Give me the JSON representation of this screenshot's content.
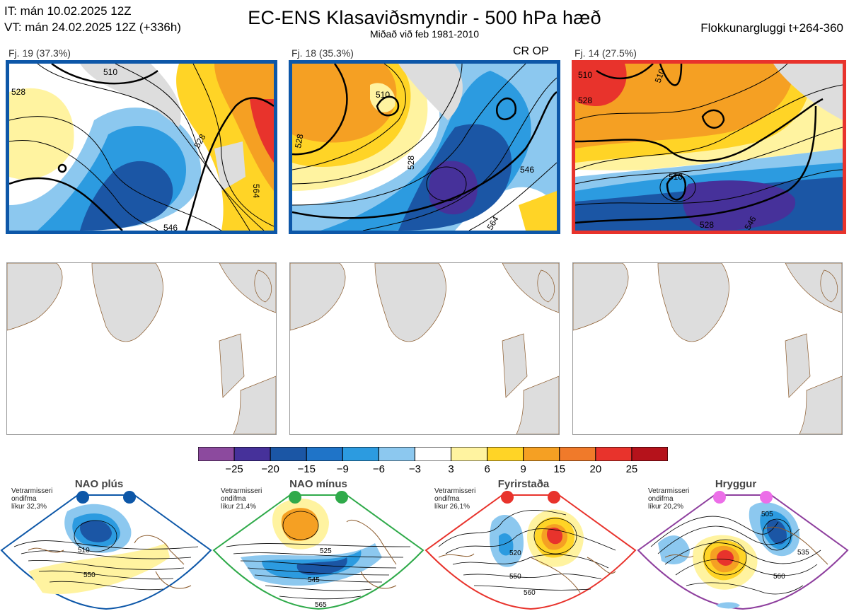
{
  "header": {
    "it_line": "IT: mán 10.02.2025 12Z",
    "vt_line": "VT: mán 24.02.2025 12Z  (+336h)",
    "title": "EC-ENS Klasaviðsmyndir - 500 hPa hæð",
    "subtitle": "Miðað við feb 1981-2010",
    "window": "Flokkunargluggi t+264-360"
  },
  "clusters": [
    {
      "label": "Fj. 19 (37.3%)",
      "border_color": "#0d57a8",
      "contours": [
        "510",
        "528",
        "528",
        "546",
        "564"
      ]
    },
    {
      "label": "Fj. 18 (35.3%)",
      "border_color": "#0d57a8",
      "tag": "CR OP",
      "contours": [
        "510",
        "528",
        "528",
        "546",
        "564"
      ]
    },
    {
      "label": "Fj. 14 (27.5%)",
      "border_color": "#e8332c",
      "contours": [
        "510",
        "510",
        "528",
        "510",
        "528",
        "546"
      ]
    }
  ],
  "colorbar": {
    "colors": [
      "#8c4a9e",
      "#46319a",
      "#1b56a5",
      "#1f74c8",
      "#2c9be0",
      "#8cc8ef",
      "#ffffff",
      "#fff3a0",
      "#ffd426",
      "#f5a023",
      "#f07a2a",
      "#e8332c",
      "#b5121b"
    ],
    "ticks": [
      "−25",
      "−20",
      "−15",
      "−9",
      "−6",
      "−3",
      "3",
      "6",
      "9",
      "15",
      "20",
      "25"
    ]
  },
  "regimes": [
    {
      "name": "NAO plús",
      "info1": "Vetrarmisseri",
      "info2": "ondifma",
      "info3": "líkur 32,3%",
      "color": "#0d57a8",
      "contours": [
        "510",
        "550"
      ]
    },
    {
      "name": "NAO mínus",
      "info1": "Vetrarmisseri",
      "info2": "ondifma",
      "info3": "líkur 21,4%",
      "color": "#2faa4a",
      "contours": [
        "525",
        "545",
        "565"
      ]
    },
    {
      "name": "Fyrirstaða",
      "info1": "Vetrarmisseri",
      "info2": "ondifma",
      "info3": "líkur 26,1%",
      "color": "#e8332c",
      "contours": [
        "520",
        "550",
        "560"
      ]
    },
    {
      "name": "Hryggur",
      "info1": "Vetrarmisseri",
      "info2": "ondifma",
      "info3": "líkur 20,2%",
      "color": "#8e3f9e",
      "contours": [
        "505",
        "535",
        "560"
      ]
    }
  ]
}
